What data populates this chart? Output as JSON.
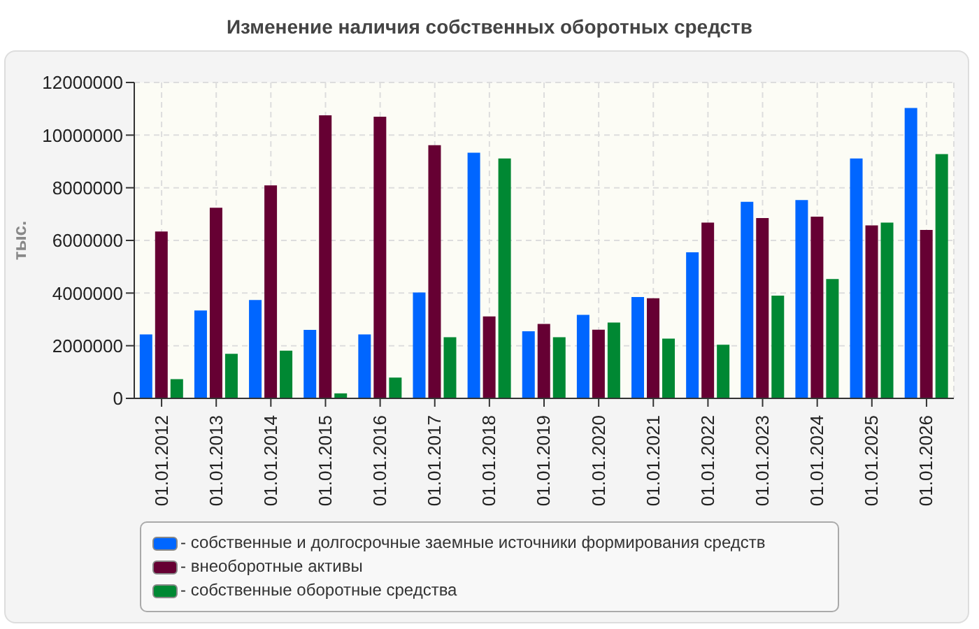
{
  "chart_data": {
    "type": "bar",
    "title": "Изменение наличия собственных оборотных средств",
    "ylabel": "тыс.",
    "categories": [
      "01.01.2012",
      "01.01.2013",
      "01.01.2014",
      "01.01.2015",
      "01.01.2016",
      "01.01.2017",
      "01.01.2018",
      "01.01.2019",
      "01.01.2020",
      "01.01.2021",
      "01.01.2022",
      "01.01.2023",
      "01.01.2024",
      "01.01.2025",
      "01.01.2026"
    ],
    "series": [
      {
        "name": "- собственные и долгосрочные заемные источники формирования средств",
        "color": "#0066ff",
        "values": [
          2430000,
          3340000,
          3740000,
          2600000,
          2430000,
          4020000,
          9330000,
          2550000,
          3170000,
          3850000,
          5550000,
          7470000,
          7530000,
          9110000,
          11030000
        ]
      },
      {
        "name": "- внеоборотные активы",
        "color": "#660033",
        "values": [
          6340000,
          7240000,
          8090000,
          10750000,
          10700000,
          9620000,
          3110000,
          2830000,
          2610000,
          3800000,
          6680000,
          6850000,
          6900000,
          6570000,
          6400000
        ]
      },
      {
        "name": "- собственные оборотные средства",
        "color": "#008833",
        "values": [
          730000,
          1690000,
          1810000,
          190000,
          790000,
          2320000,
          9110000,
          2320000,
          2880000,
          2270000,
          2040000,
          3900000,
          4530000,
          6680000,
          9280000
        ]
      }
    ],
    "ylim": [
      0,
      12000000
    ],
    "yticks": [
      0,
      2000000,
      4000000,
      6000000,
      8000000,
      10000000,
      12000000
    ],
    "grid": true,
    "legend": "bottom"
  }
}
